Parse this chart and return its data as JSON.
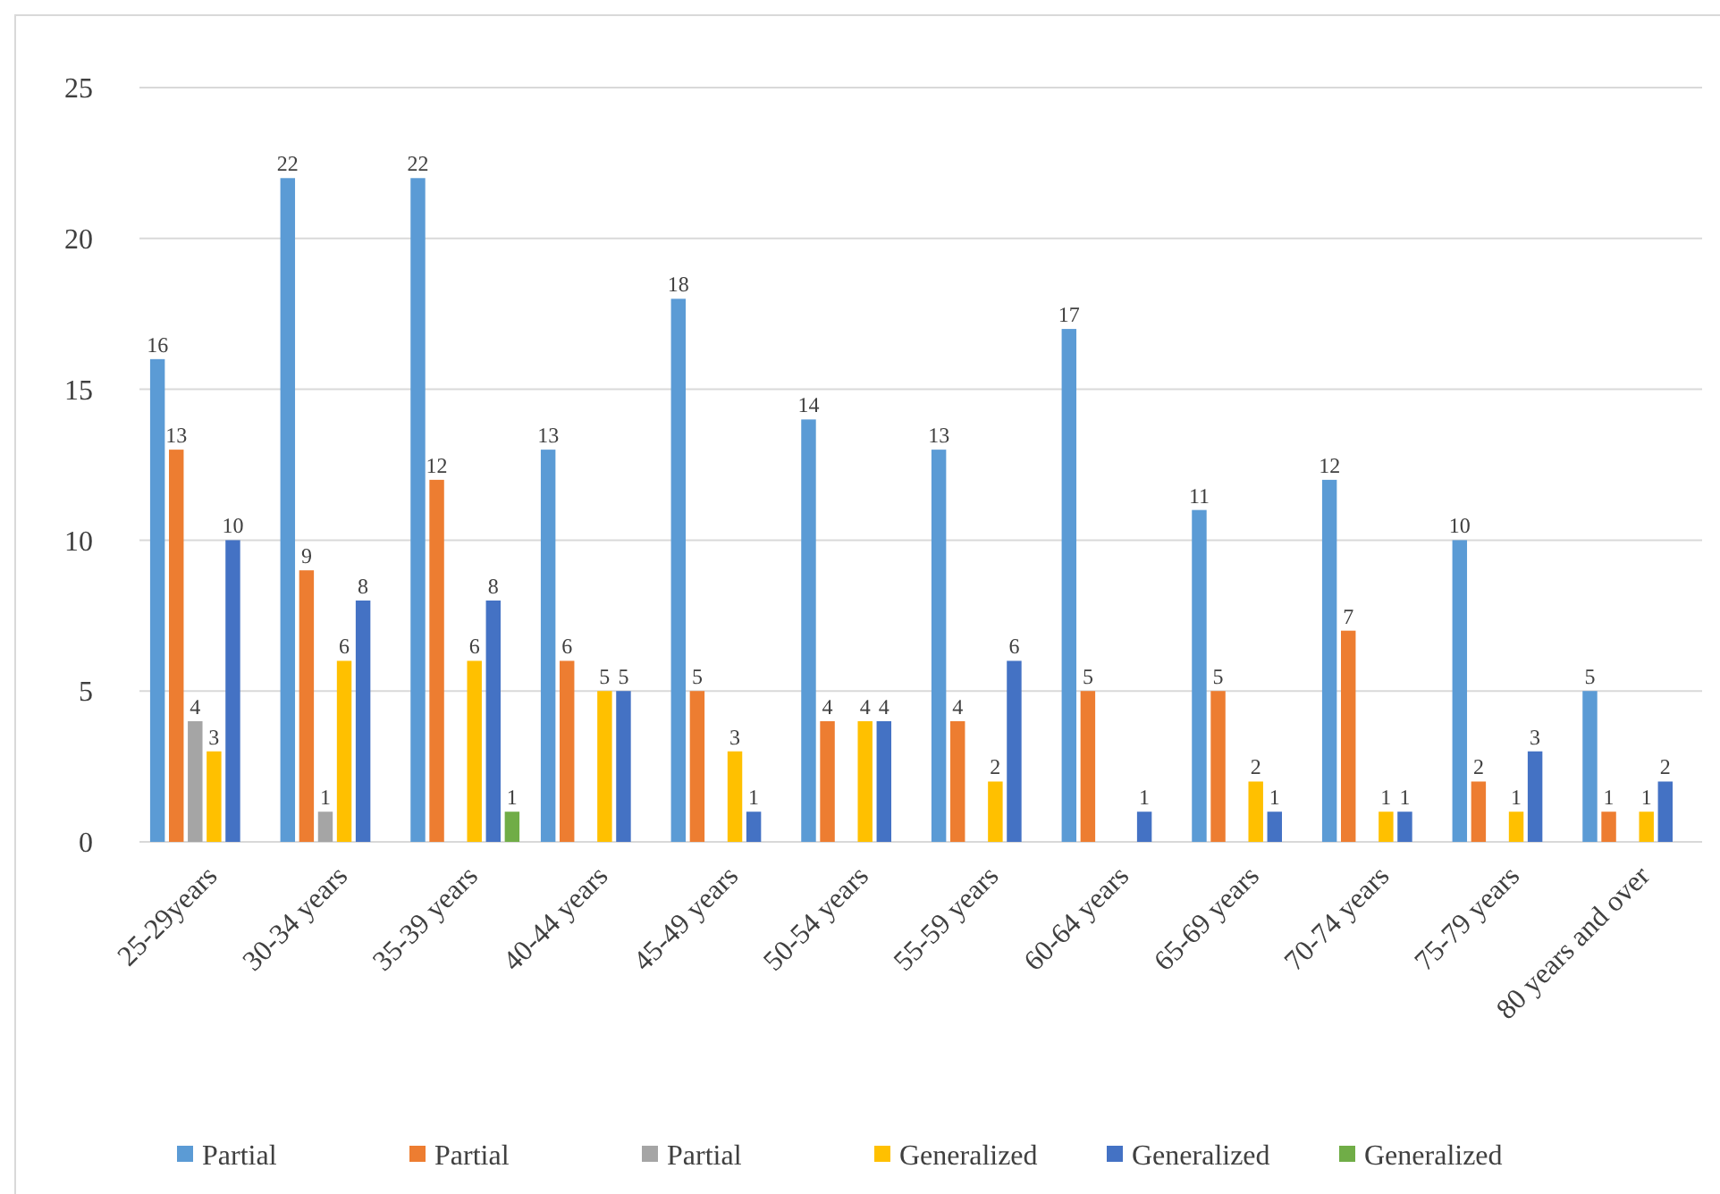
{
  "chart_data": {
    "type": "bar",
    "categories": [
      "25-29years",
      "30-34 years",
      "35-39 years",
      "40-44 years",
      "45-49 years",
      "50-54 years",
      "55-59 years",
      "60-64 years",
      "65-69 years",
      "70-74 years",
      "75-79 years",
      "80 years and over"
    ],
    "series": [
      {
        "name": "Partial",
        "color": "#5b9bd5",
        "values": [
          16,
          22,
          22,
          13,
          18,
          14,
          13,
          17,
          11,
          12,
          10,
          5
        ]
      },
      {
        "name": "Partial",
        "color": "#ed7d31",
        "values": [
          13,
          9,
          12,
          6,
          5,
          4,
          4,
          5,
          5,
          7,
          2,
          1
        ]
      },
      {
        "name": "Partial",
        "color": "#a5a5a5",
        "values": [
          4,
          1,
          null,
          null,
          null,
          null,
          null,
          null,
          null,
          null,
          null,
          null
        ]
      },
      {
        "name": "Generalized",
        "color": "#ffc000",
        "values": [
          3,
          6,
          6,
          5,
          3,
          4,
          2,
          null,
          2,
          1,
          1,
          1
        ]
      },
      {
        "name": "Generalized",
        "color": "#4472c4",
        "values": [
          10,
          8,
          8,
          5,
          1,
          4,
          6,
          1,
          1,
          1,
          3,
          2
        ]
      },
      {
        "name": "Generalized",
        "color": "#70ad47",
        "values": [
          null,
          null,
          1,
          null,
          null,
          null,
          null,
          null,
          null,
          null,
          null,
          null
        ]
      }
    ],
    "ylim": [
      0,
      25
    ],
    "yticks": [
      0,
      5,
      10,
      15,
      20,
      25
    ],
    "grid": "y",
    "legend": "bottom",
    "data_labels": true
  }
}
